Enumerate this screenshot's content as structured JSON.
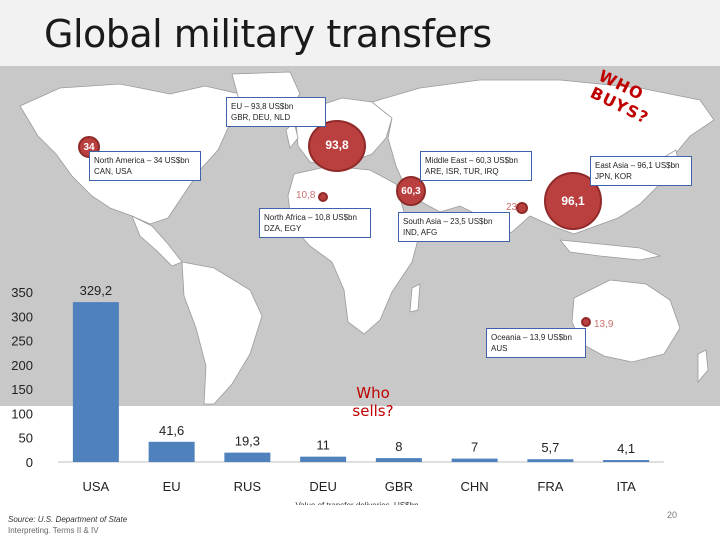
{
  "slide": {
    "title": "Global military transfers",
    "who_buys": "WHO BUYS?",
    "who_sells": "Who sells?",
    "source": "Source: U.S. Department of State",
    "subnote": "Interpreting. Terms II & IV",
    "page_number": "20"
  },
  "buyers": [
    {
      "id": "na",
      "bubble": "34",
      "callout": [
        "North America – 34 US$bn",
        "CAN, USA"
      ]
    },
    {
      "id": "eu",
      "bubble": "93,8",
      "callout": [
        "EU – 93,8 US$bn",
        "GBR, DEU, NLD"
      ]
    },
    {
      "id": "naf",
      "bubble": "10,8",
      "callout": [
        "North Africa – 10,8 US$bn",
        "DZA, EGY"
      ]
    },
    {
      "id": "me",
      "bubble": "60,3",
      "callout": [
        "Middle East – 60,3 US$bn",
        "ARE, ISR, TUR, IRQ"
      ]
    },
    {
      "id": "sa",
      "bubble": "23,5",
      "callout": [
        "South Asia – 23,5 US$bn",
        "IND, AFG"
      ]
    },
    {
      "id": "ea",
      "bubble": "96,1",
      "callout": [
        "East Asia – 96,1 US$bn",
        "JPN, KOR"
      ]
    },
    {
      "id": "oc",
      "bubble": "13,9",
      "callout": [
        "Oceania – 13,9 US$bn",
        "AUS"
      ]
    }
  ],
  "chart_data": {
    "type": "bar",
    "categories": [
      "USA",
      "EU",
      "RUS",
      "DEU",
      "GBR",
      "CHN",
      "FRA",
      "ITA"
    ],
    "values": [
      329.2,
      41.6,
      19.3,
      11,
      8,
      7,
      5.7,
      4.1
    ],
    "data_labels": [
      "329,2",
      "41,6",
      "19,3",
      "11",
      "8",
      "7",
      "5,7",
      "4,1"
    ],
    "xlabel": "Value of transfer deliveries, US$bn",
    "ylim": [
      0,
      350
    ],
    "yticks": [
      0,
      50,
      100,
      150,
      200,
      250,
      300,
      350
    ],
    "bar_color": "#4f81bd",
    "grid": false
  }
}
